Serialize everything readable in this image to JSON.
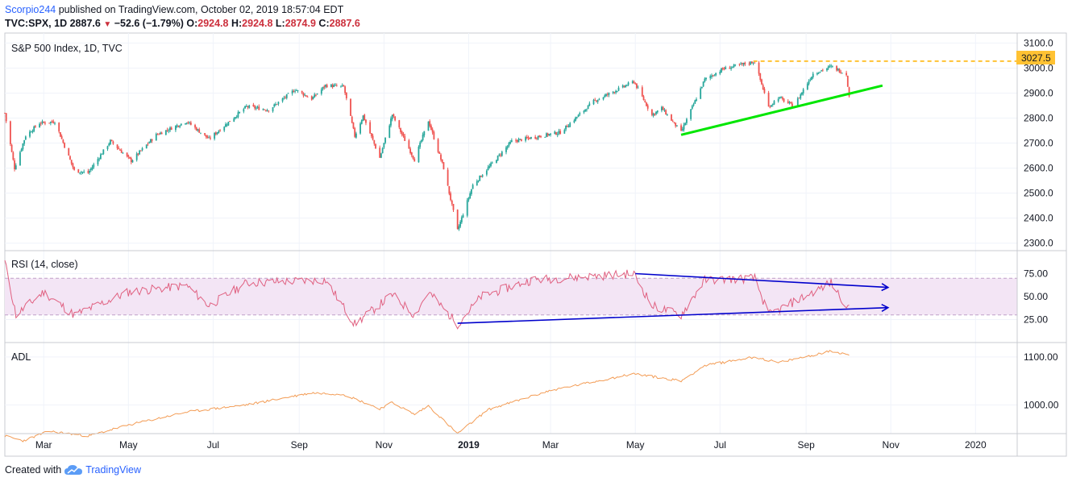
{
  "header": {
    "author": "Scorpio244",
    "published_text": "published on TradingView.com, October 02, 2019 18:57:04 EDT",
    "symbol": "TVC:SPX, 1D",
    "last": "2887.6",
    "change": "−52.6 (−1.79%)",
    "o_label": "O:",
    "o_value": "2924.8",
    "h_label": "H:",
    "h_value": "2924.8",
    "l_label": "L:",
    "l_value": "2874.9",
    "c_label": "C:",
    "c_value": "2887.6"
  },
  "footer": {
    "created_with": "Created with",
    "brand": "TradingView",
    "logo_icon": "tradingview-cloud-icon"
  },
  "colors": {
    "up": "#26a69a",
    "down": "#ef5350",
    "trend_support": "#00e600",
    "trend_rsi": "#0000cc",
    "level": "#ffc233",
    "rsi_line": "#e06080",
    "rsi_band": "#f3e5f5",
    "adl_line": "#f39c55"
  },
  "chart_data": [
    {
      "type": "candlestick",
      "title": "S&P 500 Index, 1D, TVC",
      "y_ticks": [
        "3100.0",
        "3000.0",
        "2900.0",
        "2800.0",
        "2700.0",
        "2600.0",
        "2500.0",
        "2400.0",
        "2300.0"
      ],
      "ylim": [
        2270,
        3140
      ],
      "x_ticks": [
        "Mar",
        "May",
        "Jul",
        "Sep",
        "Nov",
        "2019",
        "Mar",
        "May",
        "Jul",
        "Sep",
        "Nov",
        "2020"
      ],
      "x_tick_dates": [
        "2018-03-01",
        "2018-05-01",
        "2018-07-01",
        "2018-09-01",
        "2018-11-01",
        "2019-01-01",
        "2019-03-01",
        "2019-05-01",
        "2019-07-01",
        "2019-09-01",
        "2019-11-01",
        "2020-01-01"
      ],
      "xlim": [
        "2018-02-01",
        "2020-01-31"
      ],
      "close_path": [
        [
          "2018-02-01",
          2820
        ],
        [
          "2018-02-08",
          2600
        ],
        [
          "2018-02-16",
          2730
        ],
        [
          "2018-02-26",
          2780
        ],
        [
          "2018-03-09",
          2786
        ],
        [
          "2018-03-23",
          2590
        ],
        [
          "2018-04-02",
          2581
        ],
        [
          "2018-04-18",
          2708
        ],
        [
          "2018-05-03",
          2629
        ],
        [
          "2018-05-21",
          2733
        ],
        [
          "2018-06-12",
          2787
        ],
        [
          "2018-06-28",
          2716
        ],
        [
          "2018-07-25",
          2846
        ],
        [
          "2018-08-10",
          2833
        ],
        [
          "2018-08-29",
          2914
        ],
        [
          "2018-09-10",
          2877
        ],
        [
          "2018-09-20",
          2931
        ],
        [
          "2018-10-03",
          2925
        ],
        [
          "2018-10-11",
          2728
        ],
        [
          "2018-10-17",
          2809
        ],
        [
          "2018-10-29",
          2641
        ],
        [
          "2018-11-07",
          2814
        ],
        [
          "2018-11-23",
          2633
        ],
        [
          "2018-12-03",
          2790
        ],
        [
          "2018-12-14",
          2600
        ],
        [
          "2018-12-24",
          2351
        ],
        [
          "2019-01-04",
          2532
        ],
        [
          "2019-02-01",
          2707
        ],
        [
          "2019-03-08",
          2743
        ],
        [
          "2019-04-01",
          2867
        ],
        [
          "2019-04-30",
          2946
        ],
        [
          "2019-05-13",
          2812
        ],
        [
          "2019-05-20",
          2840
        ],
        [
          "2019-06-03",
          2744
        ],
        [
          "2019-06-20",
          2954
        ],
        [
          "2019-07-03",
          2996
        ],
        [
          "2019-07-26",
          3026
        ],
        [
          "2019-08-05",
          2844
        ],
        [
          "2019-08-12",
          2883
        ],
        [
          "2019-08-23",
          2847
        ],
        [
          "2019-09-06",
          2978
        ],
        [
          "2019-09-19",
          3006
        ],
        [
          "2019-09-30",
          2976
        ],
        [
          "2019-10-02",
          2887.6
        ]
      ],
      "last_value": 2887.6,
      "annotations": {
        "level_label": "3027.5",
        "level_value": 3027.5,
        "level_start": "2019-07-25",
        "support_trendline": [
          [
            "2019-06-03",
            2733
          ],
          [
            "2019-10-26",
            2930
          ]
        ]
      }
    },
    {
      "type": "line",
      "title": "RSI (14, close)",
      "y_ticks": [
        "75.00",
        "50.00",
        "25.00"
      ],
      "ylim": [
        0,
        100
      ],
      "band": [
        30,
        70
      ],
      "rsi_path": [
        [
          "2018-02-01",
          88
        ],
        [
          "2018-02-09",
          30
        ],
        [
          "2018-03-01",
          55
        ],
        [
          "2018-03-23",
          30
        ],
        [
          "2018-05-01",
          55
        ],
        [
          "2018-06-12",
          62
        ],
        [
          "2018-06-28",
          40
        ],
        [
          "2018-07-25",
          65
        ],
        [
          "2018-09-20",
          68
        ],
        [
          "2018-10-11",
          20
        ],
        [
          "2018-11-07",
          52
        ],
        [
          "2018-11-23",
          30
        ],
        [
          "2018-12-03",
          55
        ],
        [
          "2018-12-24",
          20
        ],
        [
          "2019-01-10",
          50
        ],
        [
          "2019-02-15",
          68
        ],
        [
          "2019-04-30",
          75
        ],
        [
          "2019-05-13",
          40
        ],
        [
          "2019-06-03",
          30
        ],
        [
          "2019-06-20",
          68
        ],
        [
          "2019-07-26",
          70
        ],
        [
          "2019-08-05",
          30
        ],
        [
          "2019-09-19",
          65
        ],
        [
          "2019-10-02",
          36
        ]
      ],
      "annotations": {
        "upper_trendline": [
          [
            "2019-05-01",
            75
          ],
          [
            "2019-10-30",
            60
          ]
        ],
        "lower_trendline": [
          [
            "2018-12-24",
            21
          ],
          [
            "2019-10-30",
            38
          ]
        ]
      }
    },
    {
      "type": "line",
      "title": "ADL",
      "y_ticks": [
        "1100.00",
        "1000.00"
      ],
      "ylim": [
        940,
        1130
      ],
      "adl_path": [
        [
          "2018-02-01",
          935
        ],
        [
          "2018-02-14",
          925
        ],
        [
          "2018-03-05",
          945
        ],
        [
          "2018-04-02",
          935
        ],
        [
          "2018-05-01",
          958
        ],
        [
          "2018-06-12",
          985
        ],
        [
          "2018-07-25",
          1000
        ],
        [
          "2018-09-10",
          1025
        ],
        [
          "2018-10-03",
          1022
        ],
        [
          "2018-10-29",
          992
        ],
        [
          "2018-11-07",
          1005
        ],
        [
          "2018-11-23",
          980
        ],
        [
          "2018-12-03",
          998
        ],
        [
          "2018-12-24",
          940
        ],
        [
          "2019-01-15",
          990
        ],
        [
          "2019-03-01",
          1030
        ],
        [
          "2019-04-30",
          1065
        ],
        [
          "2019-06-03",
          1050
        ],
        [
          "2019-06-20",
          1082
        ],
        [
          "2019-07-26",
          1100
        ],
        [
          "2019-08-12",
          1088
        ],
        [
          "2019-09-19",
          1112
        ],
        [
          "2019-10-02",
          1105
        ]
      ]
    }
  ]
}
